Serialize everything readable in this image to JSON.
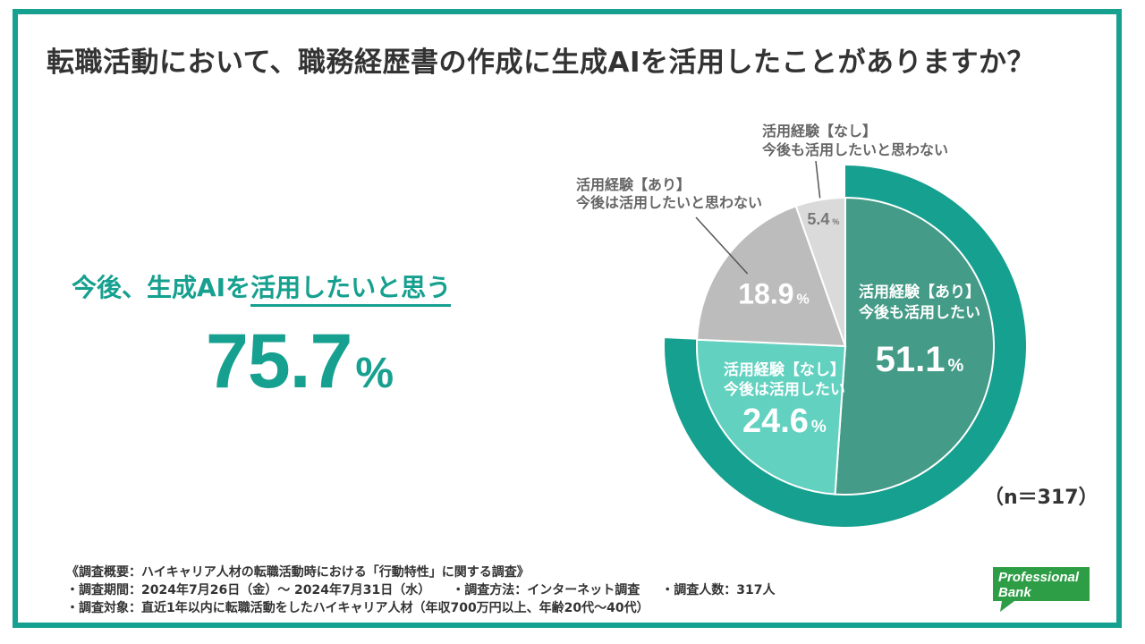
{
  "title": "転職活動において、職務経歴書の作成に生成AIを活用したことがありますか？",
  "highlight": {
    "prefix": "今後、生成AIを",
    "underlined": "活用したいと思う",
    "value": "75.7",
    "unit": "%"
  },
  "chart_data": {
    "type": "pie",
    "title": "転職活動において、職務経歴書の作成に生成AIを活用したことがありますか？",
    "unit": "%",
    "slices": [
      {
        "label_line1": "活用経験【あり】",
        "label_line2": "今後も活用したい",
        "value": 51.1,
        "value_text": "51.1",
        "color": "#449b87"
      },
      {
        "label_line1": "活用経験【なし】",
        "label_line2": "今後は活用したい",
        "value": 24.6,
        "value_text": "24.6",
        "color": "#62d1c0"
      },
      {
        "label_line1": "活用経験【あり】",
        "label_line2": "今後は活用したいと思わない",
        "value": 18.9,
        "value_text": "18.9",
        "color": "#bcbcbc"
      },
      {
        "label_line1": "活用経験【なし】",
        "label_line2": "今後も活用したいと思わない",
        "value": 5.4,
        "value_text": "5.4",
        "color": "#dadada"
      }
    ],
    "outer_ring": {
      "value": 75.7,
      "color": "#16a08f",
      "meaning": "今後、生成AIを活用したいと思う"
    },
    "sample_label": "（n＝317）"
  },
  "footer": {
    "line1": "《調査概要：ハイキャリア人材の転職活動時における「行動特性」に関する調査》",
    "period": "・調査期間：2024年7月26日（金）～ 2024年7月31日（水）",
    "method": "・調査方法：インターネット調査",
    "count": "・調査人数：317人",
    "target": "・調査対象：直近1年以内に転職活動をしたハイキャリア人材（年収700万円以上、年齢20代～40代）"
  },
  "logo": {
    "line1": "Professional",
    "line2": "Bank",
    "color": "#2e9e46"
  },
  "colors": {
    "accent": "#16a08f",
    "text": "#333333"
  }
}
